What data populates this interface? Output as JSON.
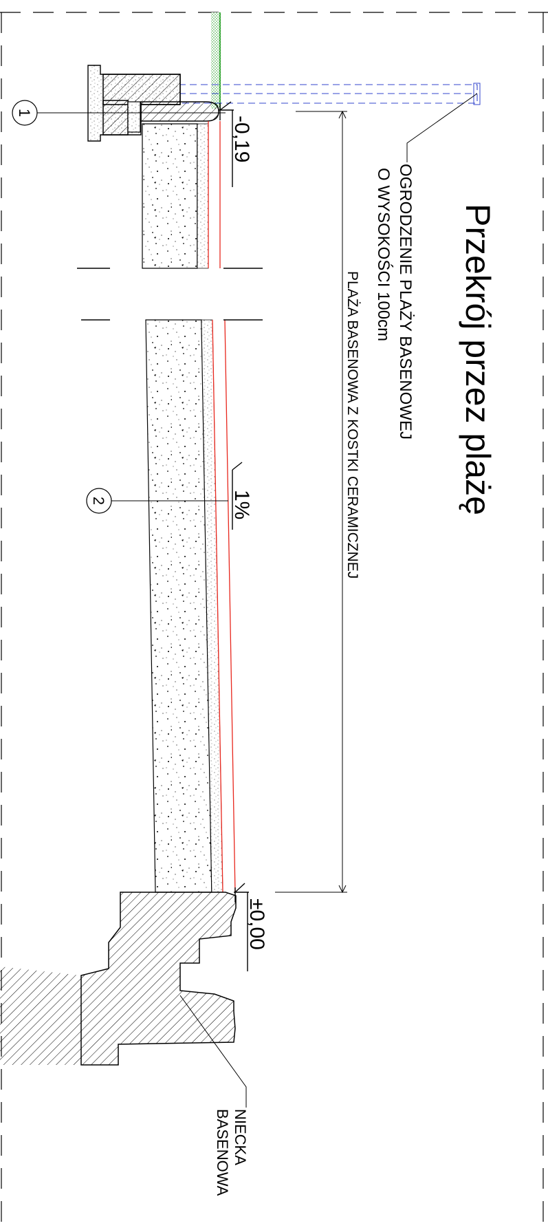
{
  "title": "Przekrój przez plażę",
  "labels": {
    "fence_line1": "OGRODZENIE PLAŻY BASENOWEJ",
    "fence_line2": "O WYSOKOŚCI 100cm",
    "beach": "PLAŻA BASENOWA Z KOSTKI CERAMICZNEJ",
    "basin_line1": "NIECKA",
    "basin_line2": "BASENOWA"
  },
  "dimensions": {
    "level_top": "-0,19",
    "level_bottom": "±0,00",
    "slope": "1%"
  },
  "markers": {
    "m1": "1",
    "m2": "2"
  },
  "colors": {
    "tile_layer": "#e8261c",
    "fence": "#3344cc",
    "grass": "#1a9a1a",
    "line": "#000000"
  }
}
